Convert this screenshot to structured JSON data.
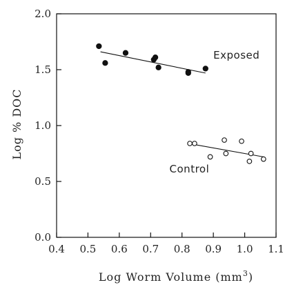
{
  "chart_data": {
    "type": "scatter",
    "xlabel": "Log Worm Volume (mm",
    "xlabel_sup": "3",
    "xlabel_end": ")",
    "ylabel": "Log % DOC",
    "xlim": [
      0.4,
      1.1
    ],
    "ylim": [
      0.0,
      2.0
    ],
    "x_ticks": [
      0.4,
      0.5,
      0.6,
      0.7,
      0.8,
      0.9,
      1.0,
      1.1
    ],
    "x_tick_labels": [
      "0.4",
      "0.5",
      "0.6",
      "0.7",
      "0.8",
      "0.9",
      "1.0",
      "1.1"
    ],
    "y_ticks": [
      0.0,
      0.5,
      1.0,
      1.5,
      2.0
    ],
    "y_tick_labels": [
      "0.0",
      "0.5",
      "1.0",
      "1.5",
      "2.0"
    ],
    "grid": false,
    "series": [
      {
        "name": "Exposed",
        "marker": "filled-circle",
        "color": "#111111",
        "label_x": 0.9,
        "label_y": 1.6,
        "points": [
          {
            "x": 0.535,
            "y": 1.71
          },
          {
            "x": 0.555,
            "y": 1.56
          },
          {
            "x": 0.62,
            "y": 1.65
          },
          {
            "x": 0.71,
            "y": 1.59
          },
          {
            "x": 0.715,
            "y": 1.61
          },
          {
            "x": 0.725,
            "y": 1.52
          },
          {
            "x": 0.82,
            "y": 1.47
          },
          {
            "x": 0.82,
            "y": 1.48
          },
          {
            "x": 0.875,
            "y": 1.51
          }
        ],
        "fit": {
          "x": [
            0.54,
            0.875
          ],
          "y": [
            1.66,
            1.47
          ]
        }
      },
      {
        "name": "Control",
        "marker": "open-circle",
        "color": "#111111",
        "label_x": 0.76,
        "label_y": 0.58,
        "points": [
          {
            "x": 0.825,
            "y": 0.84
          },
          {
            "x": 0.84,
            "y": 0.84
          },
          {
            "x": 0.89,
            "y": 0.72
          },
          {
            "x": 0.935,
            "y": 0.87
          },
          {
            "x": 0.94,
            "y": 0.75
          },
          {
            "x": 0.99,
            "y": 0.86
          },
          {
            "x": 1.015,
            "y": 0.68
          },
          {
            "x": 1.02,
            "y": 0.75
          },
          {
            "x": 1.06,
            "y": 0.7
          }
        ],
        "fit": {
          "x": [
            0.82,
            1.06
          ],
          "y": [
            0.84,
            0.72
          ]
        }
      }
    ]
  }
}
